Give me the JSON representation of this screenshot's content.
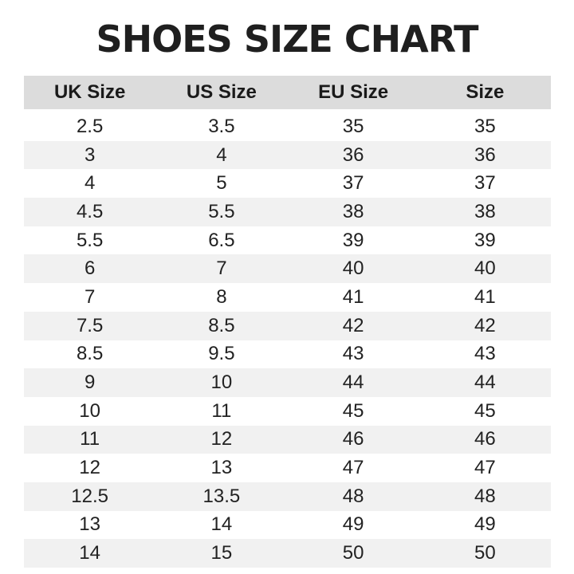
{
  "title": "SHOES SIZE CHART",
  "headers": [
    "UK Size",
    "US Size",
    "EU Size",
    "Size"
  ],
  "rows": [
    [
      "2.5",
      "3.5",
      "35",
      "35"
    ],
    [
      "3",
      "4",
      "36",
      "36"
    ],
    [
      "4",
      "5",
      "37",
      "37"
    ],
    [
      "4.5",
      "5.5",
      "38",
      "38"
    ],
    [
      "5.5",
      "6.5",
      "39",
      "39"
    ],
    [
      "6",
      "7",
      "40",
      "40"
    ],
    [
      "7",
      "8",
      "41",
      "41"
    ],
    [
      "7.5",
      "8.5",
      "42",
      "42"
    ],
    [
      "8.5",
      "9.5",
      "43",
      "43"
    ],
    [
      "9",
      "10",
      "44",
      "44"
    ],
    [
      "10",
      "11",
      "45",
      "45"
    ],
    [
      "11",
      "12",
      "46",
      "46"
    ],
    [
      "12",
      "13",
      "47",
      "47"
    ],
    [
      "12.5",
      "13.5",
      "48",
      "48"
    ],
    [
      "13",
      "14",
      "49",
      "49"
    ],
    [
      "14",
      "15",
      "50",
      "50"
    ]
  ],
  "colors": {
    "header_bg": "#dcdcdc",
    "alt_row_bg": "#f1f1f1",
    "text": "#1e1e1e"
  }
}
